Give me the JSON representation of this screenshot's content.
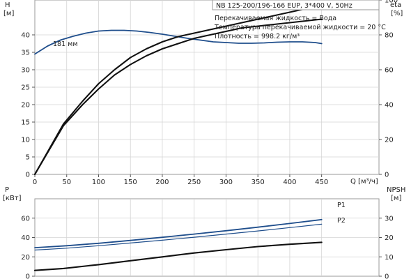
{
  "chart_data": [
    {
      "type": "line",
      "panel": "top",
      "title": "NB 125-200/196-166 EUP, 3*400 V, 50Hz",
      "info_lines": [
        "Перекачиваемая жидкость = Вода",
        "Температура перекачиваемой жидкости = 20 °C",
        "Плотность = 998.2 кг/м³"
      ],
      "xlabel": "Q [м³/ч]",
      "xlim": [
        0,
        540
      ],
      "x_ticks": [
        0,
        50,
        100,
        150,
        200,
        250,
        300,
        350,
        400,
        450
      ],
      "y_left": {
        "label_line1": "H",
        "label_line2": "[м]",
        "lim": [
          0,
          50
        ],
        "ticks": [
          0,
          5,
          10,
          15,
          20,
          25,
          30,
          35,
          40
        ]
      },
      "y_right": {
        "label_line1": "eta",
        "label_line2": "[%]",
        "lim": [
          0,
          100
        ],
        "ticks": [
          0,
          20,
          40,
          60,
          80,
          100
        ]
      },
      "annotation": "181 мм",
      "series": [
        {
          "axis": "left",
          "color": "#1f4e8c",
          "x": [
            0,
            20,
            40,
            60,
            80,
            100,
            120,
            140,
            160,
            180,
            200,
            220,
            240,
            260,
            280,
            300,
            320,
            340,
            360,
            380,
            400,
            420,
            440,
            450
          ],
          "y": [
            34.5,
            36.8,
            38.5,
            39.6,
            40.5,
            41.1,
            41.3,
            41.3,
            41.1,
            40.7,
            40.2,
            39.6,
            39.0,
            38.5,
            38.0,
            37.8,
            37.6,
            37.6,
            37.7,
            37.9,
            38.0,
            38.0,
            37.8,
            37.5
          ]
        },
        {
          "axis": "right",
          "color": "#111111",
          "x": [
            0,
            45,
            75,
            100,
            125,
            150,
            175,
            200,
            225,
            250,
            275,
            300,
            325,
            350,
            375,
            400,
            425,
            450
          ],
          "y": [
            0,
            29,
            42,
            52,
            60,
            67,
            72,
            76,
            79,
            81,
            83,
            85,
            87,
            89,
            91,
            93,
            95,
            96
          ]
        },
        {
          "axis": "right",
          "color": "#111111",
          "x": [
            0,
            45,
            75,
            100,
            125,
            150,
            175,
            200,
            225,
            250,
            275,
            300,
            325,
            350,
            375,
            400,
            425,
            450
          ],
          "y": [
            0,
            28,
            40,
            49,
            57,
            63,
            68,
            72,
            75,
            78,
            80,
            82,
            84,
            85,
            86,
            87,
            88,
            89
          ]
        }
      ]
    },
    {
      "type": "line",
      "panel": "bottom",
      "xlim": [
        0,
        540
      ],
      "y_left": {
        "label_line1": "P",
        "label_line2": "[кВт]",
        "lim": [
          0,
          80
        ],
        "ticks": [
          0,
          20,
          40,
          60
        ]
      },
      "y_right": {
        "label_line1": "NPSH",
        "label_line2": "[м]",
        "lim": [
          0,
          40
        ],
        "ticks": [
          0,
          10,
          20,
          30
        ]
      },
      "series": [
        {
          "name": "P1",
          "axis": "left",
          "color": "#1f4e8c",
          "x": [
            0,
            50,
            100,
            150,
            200,
            250,
            300,
            350,
            400,
            450
          ],
          "y": [
            29.5,
            31.5,
            34.0,
            37.0,
            40.2,
            43.5,
            47.0,
            50.7,
            54.5,
            58.5
          ]
        },
        {
          "name": "P2",
          "axis": "left",
          "color": "#1f4e8c",
          "x": [
            0,
            50,
            100,
            150,
            200,
            250,
            300,
            350,
            400,
            450
          ],
          "y": [
            27.0,
            29.0,
            31.5,
            34.3,
            37.2,
            40.3,
            43.5,
            46.8,
            50.2,
            53.8
          ]
        },
        {
          "axis": "right",
          "color": "#111111",
          "x": [
            0,
            45,
            100,
            150,
            200,
            250,
            300,
            350,
            400,
            450
          ],
          "y": [
            3.0,
            4.0,
            6.0,
            8.0,
            10.0,
            12.0,
            13.7,
            15.3,
            16.5,
            17.5
          ]
        }
      ]
    }
  ]
}
